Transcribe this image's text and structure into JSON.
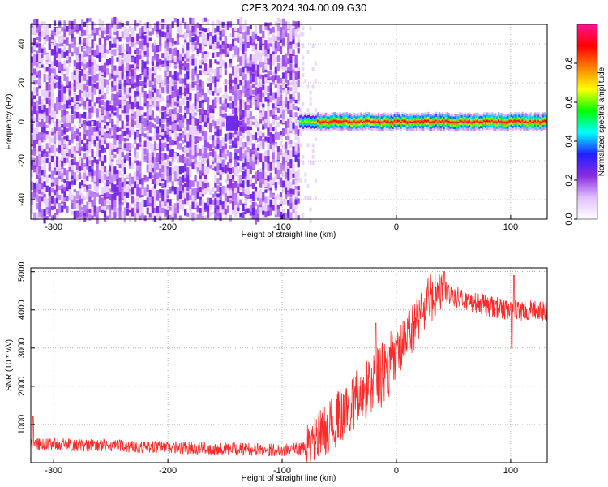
{
  "figure_title": "C2E3.2024.304.00.09.G30",
  "chart_data": [
    {
      "type": "heatmap",
      "xlabel": "Height of straight line (km)",
      "ylabel": "Frequency (Hz)",
      "xlim": [
        -320,
        132
      ],
      "ylim": [
        -50,
        50
      ],
      "x_ticks": [
        -300,
        -200,
        -100,
        0,
        100
      ],
      "y_ticks": [
        -40,
        -20,
        0,
        20,
        40
      ],
      "grid": true,
      "colorbar": {
        "label": "Normalized spectral amplitude",
        "range": [
          0.0,
          1.0
        ],
        "ticks": [
          0.0,
          0.2,
          0.4,
          0.6,
          0.8
        ],
        "colormap": [
          "#ffffff",
          "#e0c0ff",
          "#8a2be2",
          "#2020ff",
          "#00ffff",
          "#00ff00",
          "#ffff00",
          "#ff8000",
          "#ff0000",
          "#ff1493"
        ]
      },
      "regions": [
        {
          "x_range": [
            -320,
            -85
          ],
          "freq_range": [
            -50,
            50
          ],
          "amplitude": "noise",
          "level": 0.15
        },
        {
          "x_range": [
            -85,
            132
          ],
          "freq_range": [
            -3,
            3
          ],
          "amplitude": "signal",
          "level": 0.9
        }
      ],
      "spots": [
        {
          "x": -145,
          "freq": -1,
          "level": 0.25
        }
      ]
    },
    {
      "type": "line",
      "xlabel": "Height of straight line (km)",
      "ylabel": "SNR (10 * v/v)",
      "xlim": [
        -320,
        132
      ],
      "ylim": [
        0,
        5100
      ],
      "x_ticks": [
        -300,
        -200,
        -100,
        0,
        100
      ],
      "y_ticks": [
        1000,
        2000,
        3000,
        4000,
        5000
      ],
      "grid": true,
      "series_color": "#ff2a2a",
      "trend": {
        "x": [
          -320,
          -300,
          -200,
          -100,
          -80,
          -60,
          -40,
          -20,
          0,
          20,
          30,
          40,
          60,
          80,
          100,
          132
        ],
        "snr": [
          500,
          480,
          400,
          330,
          380,
          900,
          1500,
          2100,
          2700,
          3900,
          4300,
          4500,
          4250,
          4100,
          4000,
          3950
        ]
      },
      "annotations": [
        {
          "x": -318,
          "snr": 1200
        },
        {
          "x": -18,
          "snr": 3650
        },
        {
          "x": 42,
          "snr": 5000
        },
        {
          "x": 103,
          "snr": 4900
        },
        {
          "x": 101,
          "snr": 3000
        }
      ]
    }
  ]
}
